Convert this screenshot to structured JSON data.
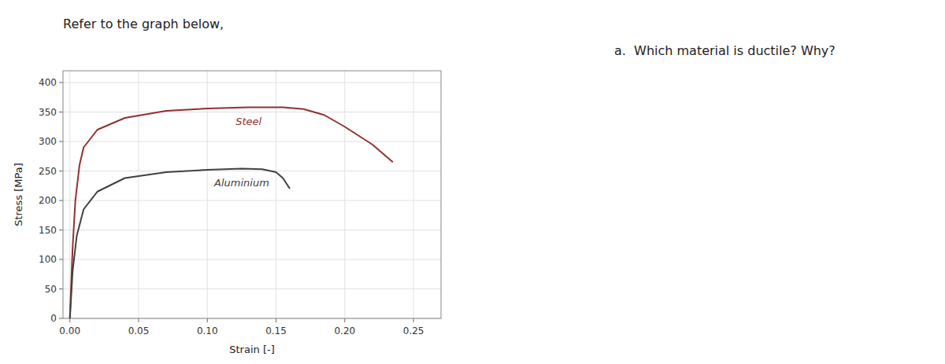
{
  "chart_data": {
    "type": "line",
    "title": "Refer to the graph below,",
    "annotation": "a.  Which material is ductile? Why?",
    "x_label": "Strain [-]",
    "y_label": "Stress [MPa]",
    "xlim": [
      -0.005,
      0.27
    ],
    "ylim": [
      0,
      420
    ],
    "xticks": [
      {
        "value": 0,
        "label": "0.00"
      },
      {
        "value": 0.05,
        "label": "0.05"
      },
      {
        "value": 0.1,
        "label": "0.10"
      },
      {
        "value": 0.15,
        "label": "0.15"
      },
      {
        "value": 0.2,
        "label": "0.20"
      },
      {
        "value": 0.25,
        "label": "0.25"
      }
    ],
    "yticks": [
      0,
      50,
      100,
      150,
      200,
      250,
      300,
      350,
      400
    ],
    "grid": true,
    "series": [
      {
        "name": "Steel",
        "color": "#903030",
        "x": [
          0.0,
          0.002,
          0.004,
          0.007,
          0.01,
          0.02,
          0.04,
          0.07,
          0.1,
          0.13,
          0.155,
          0.17,
          0.185,
          0.2,
          0.22,
          0.235
        ],
        "values": [
          0,
          120,
          200,
          260,
          290,
          320,
          340,
          352,
          356,
          358,
          358,
          355,
          345,
          325,
          295,
          265
        ]
      },
      {
        "name": "Aluminium",
        "color": "#404040",
        "x": [
          0.0,
          0.002,
          0.005,
          0.01,
          0.02,
          0.04,
          0.07,
          0.1,
          0.125,
          0.14,
          0.15,
          0.155,
          0.16
        ],
        "values": [
          0,
          80,
          140,
          185,
          215,
          238,
          248,
          252,
          254,
          253,
          248,
          238,
          220
        ]
      }
    ]
  }
}
